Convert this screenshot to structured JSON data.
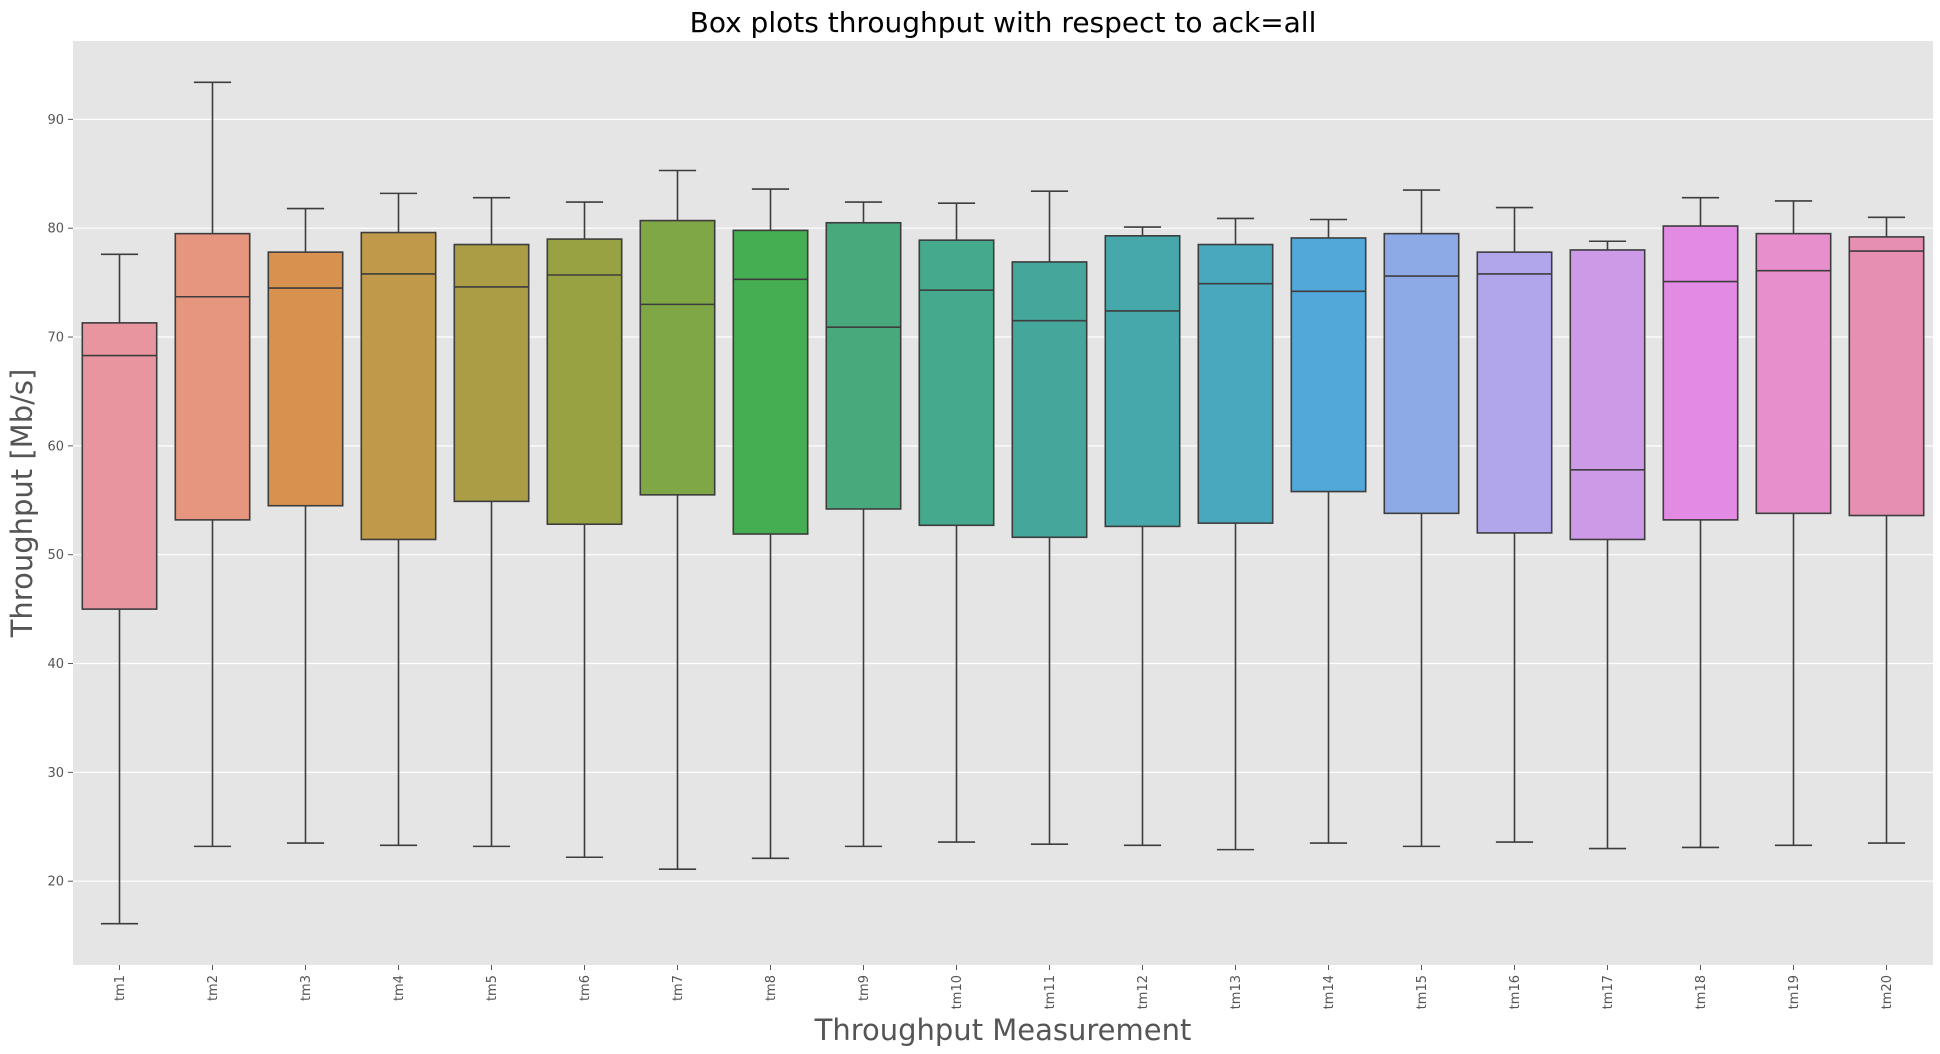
{
  "chart_data": {
    "type": "box",
    "title": "Box plots throughput with respect to ack=all",
    "xlabel": "Throughput Measurement",
    "ylabel": "Throughput [Mb/s]",
    "ylim": [
      12.3,
      97.2
    ],
    "yticks": [
      20,
      30,
      40,
      50,
      60,
      70,
      80,
      90
    ],
    "grid": true,
    "background": "#e5e5e5",
    "categories": [
      "tm1",
      "tm2",
      "tm3",
      "tm4",
      "tm5",
      "tm6",
      "tm7",
      "tm8",
      "tm9",
      "tm10",
      "tm11",
      "tm12",
      "tm13",
      "tm14",
      "tm15",
      "tm16",
      "tm17",
      "tm18",
      "tm19",
      "tm20"
    ],
    "boxes": [
      {
        "label": "tm1",
        "whisker_low": 16.1,
        "q1": 45.0,
        "median": 68.3,
        "q3": 71.3,
        "whisker_high": 77.6,
        "color": "#e8959f"
      },
      {
        "label": "tm2",
        "whisker_low": 23.2,
        "q1": 53.2,
        "median": 73.7,
        "q3": 79.5,
        "whisker_high": 93.4,
        "color": "#e6957e"
      },
      {
        "label": "tm3",
        "whisker_low": 23.5,
        "q1": 54.5,
        "median": 74.5,
        "q3": 77.8,
        "whisker_high": 81.8,
        "color": "#d6924e"
      },
      {
        "label": "tm4",
        "whisker_low": 23.3,
        "q1": 51.4,
        "median": 75.8,
        "q3": 79.6,
        "whisker_high": 83.2,
        "color": "#c09a4a"
      },
      {
        "label": "tm5",
        "whisker_low": 23.2,
        "q1": 54.9,
        "median": 74.6,
        "q3": 78.5,
        "whisker_high": 82.8,
        "color": "#ab9c46"
      },
      {
        "label": "tm6",
        "whisker_low": 22.2,
        "q1": 52.8,
        "median": 75.7,
        "q3": 79.0,
        "whisker_high": 82.4,
        "color": "#98a243"
      },
      {
        "label": "tm7",
        "whisker_low": 21.1,
        "q1": 55.5,
        "median": 73.0,
        "q3": 80.7,
        "whisker_high": 85.3,
        "color": "#7fa746"
      },
      {
        "label": "tm8",
        "whisker_low": 22.1,
        "q1": 51.9,
        "median": 75.3,
        "q3": 79.8,
        "whisker_high": 83.6,
        "color": "#45ae52"
      },
      {
        "label": "tm9",
        "whisker_low": 23.2,
        "q1": 54.2,
        "median": 70.9,
        "q3": 80.5,
        "whisker_high": 82.4,
        "color": "#47a97c"
      },
      {
        "label": "tm10",
        "whisker_low": 23.6,
        "q1": 52.7,
        "median": 74.3,
        "q3": 78.9,
        "whisker_high": 82.3,
        "color": "#45a98d"
      },
      {
        "label": "tm11",
        "whisker_low": 23.4,
        "q1": 51.6,
        "median": 71.5,
        "q3": 76.9,
        "whisker_high": 83.4,
        "color": "#45a69c"
      },
      {
        "label": "tm12",
        "whisker_low": 23.3,
        "q1": 52.6,
        "median": 72.4,
        "q3": 79.3,
        "whisker_high": 80.1,
        "color": "#47a8ab"
      },
      {
        "label": "tm13",
        "whisker_low": 22.9,
        "q1": 52.9,
        "median": 74.9,
        "q3": 78.5,
        "whisker_high": 80.9,
        "color": "#4aa8be"
      },
      {
        "label": "tm14",
        "whisker_low": 23.5,
        "q1": 55.8,
        "median": 74.2,
        "q3": 79.1,
        "whisker_high": 80.8,
        "color": "#52a8d9"
      },
      {
        "label": "tm15",
        "whisker_low": 23.2,
        "q1": 53.8,
        "median": 75.6,
        "q3": 79.5,
        "whisker_high": 83.5,
        "color": "#8eaae6"
      },
      {
        "label": "tm16",
        "whisker_low": 23.6,
        "q1": 52.0,
        "median": 75.8,
        "q3": 77.8,
        "whisker_high": 81.9,
        "color": "#b1a6ec"
      },
      {
        "label": "tm17",
        "whisker_low": 23.0,
        "q1": 51.4,
        "median": 57.8,
        "q3": 78.0,
        "whisker_high": 78.8,
        "color": "#cd9ae8"
      },
      {
        "label": "tm18",
        "whisker_low": 23.1,
        "q1": 53.2,
        "median": 75.1,
        "q3": 80.2,
        "whisker_high": 82.8,
        "color": "#e38ae4"
      },
      {
        "label": "tm19",
        "whisker_low": 23.3,
        "q1": 53.8,
        "median": 76.1,
        "q3": 79.5,
        "whisker_high": 82.5,
        "color": "#e68fcc"
      },
      {
        "label": "tm20",
        "whisker_low": 23.5,
        "q1": 53.6,
        "median": 77.9,
        "q3": 79.2,
        "whisker_high": 81.0,
        "color": "#e68fb2"
      }
    ]
  }
}
